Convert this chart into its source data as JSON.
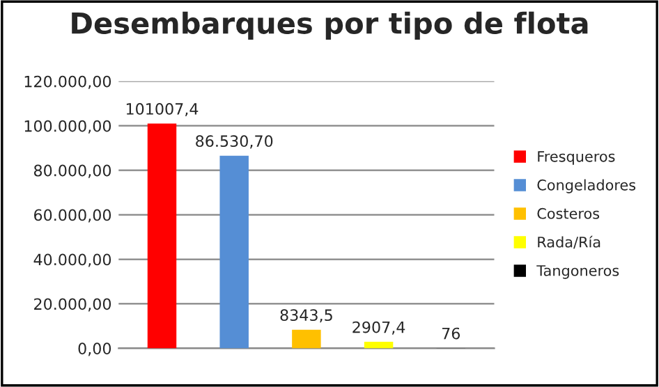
{
  "chart_data": {
    "type": "bar",
    "title": "Desembarques por tipo de flota",
    "categories": [
      null,
      null,
      null,
      null,
      null
    ],
    "series": [
      {
        "name": "Fresqueros",
        "color": "#ff0000",
        "values": [
          101007.4,
          null,
          null,
          null,
          null
        ],
        "value_labels": [
          "101007,4",
          null,
          null,
          null,
          null
        ]
      },
      {
        "name": "Congeladores",
        "color": "#558ed5",
        "values": [
          null,
          86530.7,
          null,
          null,
          null
        ],
        "value_labels": [
          null,
          "86.530,70",
          null,
          null,
          null
        ]
      },
      {
        "name": "Costeros",
        "color": "#ffc000",
        "values": [
          null,
          null,
          8343.5,
          null,
          null
        ],
        "value_labels": [
          null,
          null,
          "8343,5",
          null,
          null
        ]
      },
      {
        "name": "Rada/Ría",
        "color": "#ffff00",
        "values": [
          null,
          null,
          null,
          2907.4,
          null
        ],
        "value_labels": [
          null,
          null,
          null,
          "2907,4",
          null
        ]
      },
      {
        "name": "Tangoneros",
        "color": "#000000",
        "values": [
          null,
          null,
          null,
          null,
          76
        ],
        "value_labels": [
          null,
          null,
          null,
          null,
          "76"
        ]
      }
    ],
    "ylim": [
      0,
      120000
    ],
    "yticks": [
      {
        "value": 0,
        "label": "0,00"
      },
      {
        "value": 20000,
        "label": "20.000,00"
      },
      {
        "value": 40000,
        "label": "40.000,00"
      },
      {
        "value": 60000,
        "label": "60.000,00"
      },
      {
        "value": 80000,
        "label": "80.000,00"
      },
      {
        "value": 100000,
        "label": "100.000,00"
      },
      {
        "value": 120000,
        "label": "120.000,00"
      }
    ],
    "grid": "y",
    "legend": "right"
  }
}
